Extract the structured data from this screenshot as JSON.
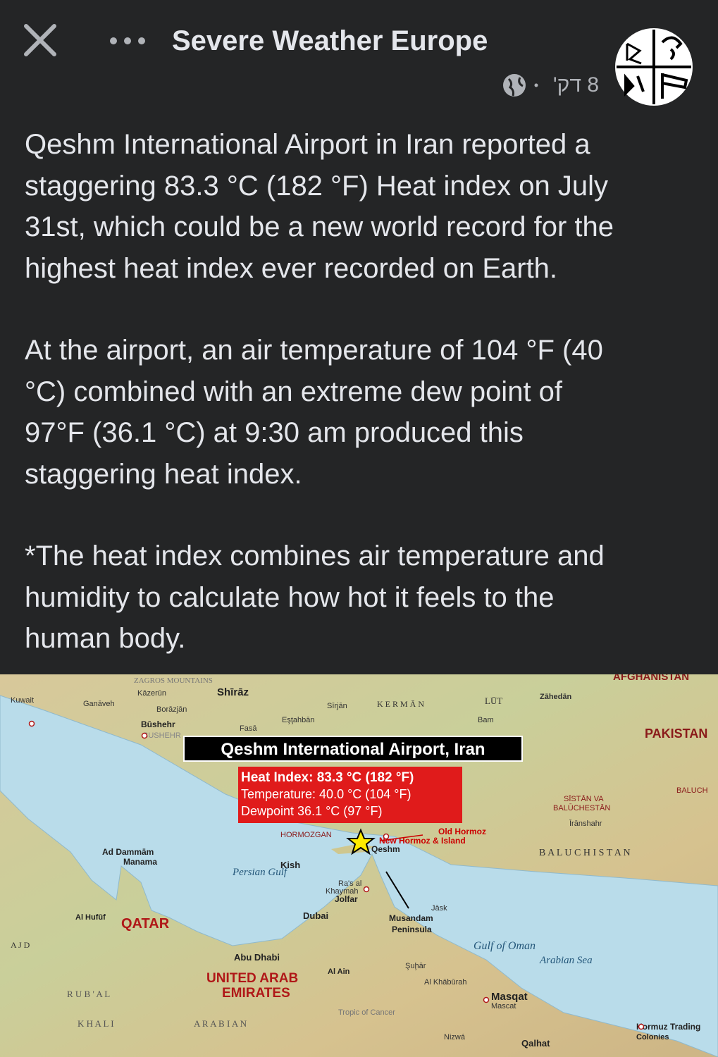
{
  "header": {
    "title": "Severe Weather Europe",
    "time": "8 דק'"
  },
  "post": {
    "paragraphs": [
      [
        "Qeshm International Airport in Iran reported a",
        "staggering 83.3 °C (182 °F) Heat index on July",
        "31st, which could be a new world record for the",
        "highest heat index ever recorded on Earth."
      ],
      [
        "At the airport, an air temperature of 104 °F (40",
        "°C) combined with an extreme dew point of",
        "97°F (36.1 °C) at 9:30 am produced this",
        "staggering heat index."
      ],
      [
        "*The heat index combines air temperature and",
        "humidity to calculate how hot it feels to the",
        "human body."
      ]
    ]
  },
  "map": {
    "title": "Qeshm International Airport, Iran",
    "info": [
      "Heat Index: 83.3 °C (182 °F)",
      "Temperature: 40.0 °C (104 °F)",
      "Dewpoint 36.1 °C (97 °F)"
    ],
    "labels": [
      "ZAGROS MOUNTAINS",
      "Kāzerūn",
      "Shīrāz",
      "Kuwait",
      "Ganāveh",
      "Borāzjān",
      "Sīrjān",
      "K E R M Ā N",
      "LŪT",
      "Zāhedān",
      "Eşţahbān",
      "Bam",
      "Būshehr",
      "Fasā",
      "BUSHEHR",
      "PAKISTAN",
      "BALUCH",
      "SĪSTĀN VA",
      "BALŪCHESTĀN",
      "Īrānshahr",
      "HORMOZGAN",
      "Old Hormoz",
      "New Hormoz & Island",
      "Qeshm",
      "B A L U C H I S T A N",
      "Ad Dammām",
      "Manama",
      "Persian Gulf",
      "Kish",
      "Ra's al",
      "Khaymah",
      "Jolfar",
      "Jāsk",
      "Dubai",
      "Al Hufūf",
      "QATAR",
      "Musandam",
      "Peninsula",
      "A J D",
      "Gulf of Oman",
      "Arabian Sea",
      "Abu Dhabi",
      "Şuḩār",
      "UNITED ARAB",
      "Al Ain",
      "EMIRATES",
      "Al Khābūrah",
      "R U B ' A L",
      "Masqat",
      "Mascat",
      "Tropic of Cancer",
      "K H A L I",
      "A R A B I A N",
      "Nizwá",
      "Hormuz Trading",
      "Colonies",
      "Qalhat",
      "AFGHANISTAN"
    ]
  }
}
